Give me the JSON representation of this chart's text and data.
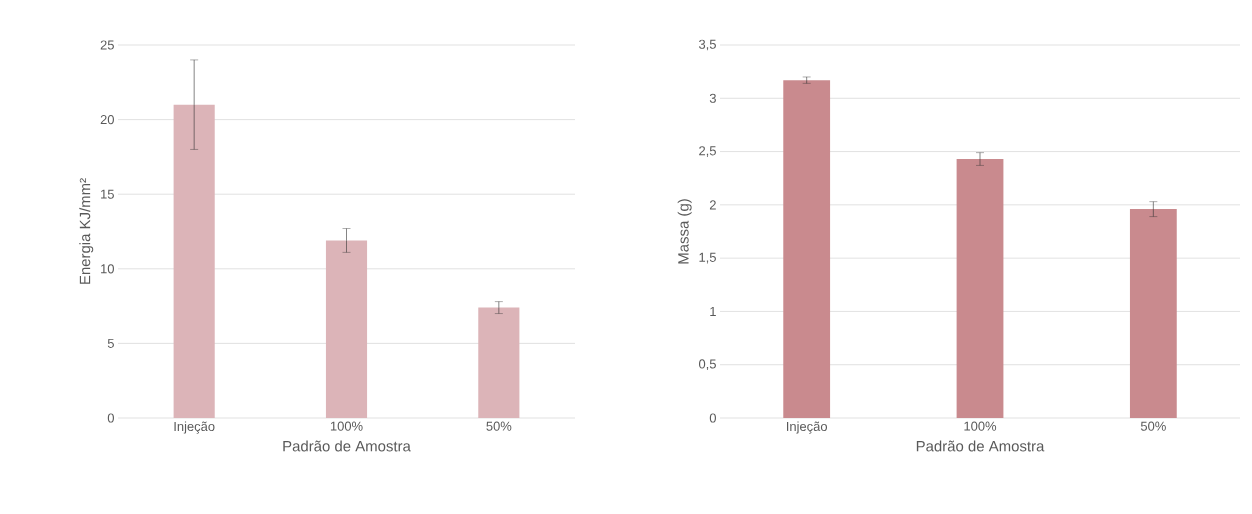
{
  "chart_data": [
    {
      "type": "bar",
      "categories": [
        "Injeção",
        "100%",
        "50%"
      ],
      "values": [
        21,
        11.9,
        7.4
      ],
      "errors": [
        3,
        0.8,
        0.4
      ],
      "color": "#dcb4b8",
      "xlabel": "Padrão de Amostra",
      "ylabel": "Energia KJ/mm²",
      "ylim": [
        0,
        25
      ],
      "yticks": [
        0,
        5,
        10,
        15,
        20,
        25
      ],
      "grid": "y"
    },
    {
      "type": "bar",
      "categories": [
        "Injeção",
        "100%",
        "50%"
      ],
      "values": [
        3.17,
        2.43,
        1.96
      ],
      "errors": [
        0.03,
        0.06,
        0.07
      ],
      "color": "#c98a8e",
      "xlabel": "Padrão de Amostra",
      "ylabel": "Massa (g)",
      "ylim": [
        0,
        3.5
      ],
      "yticks": [
        0,
        {
          "value": 0.5,
          "label": "0,5"
        },
        1,
        {
          "value": 1.5,
          "label": "1,5"
        },
        2,
        {
          "value": 2.5,
          "label": "2,5"
        },
        3,
        {
          "value": 3.5,
          "label": "3,5"
        }
      ],
      "grid": "y"
    }
  ]
}
